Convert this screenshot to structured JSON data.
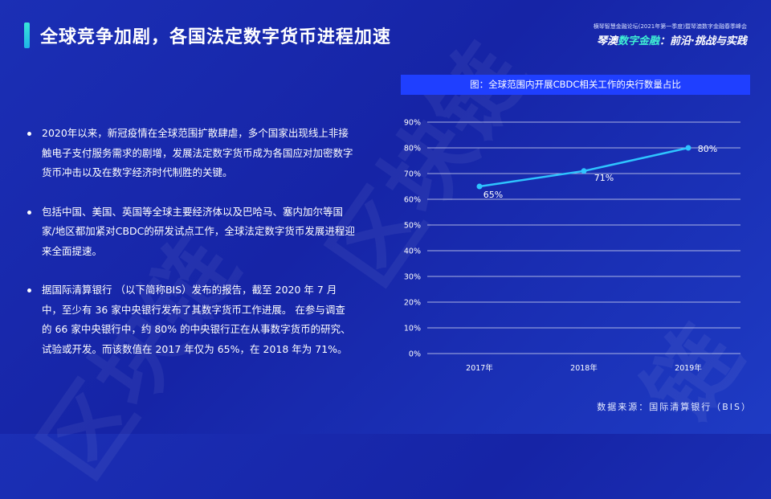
{
  "header": {
    "title": "全球竞争加剧，各国法定数字货币进程加速",
    "event_subtitle": "横琴智慧金融论坛(2021年第一季度)暨琴澳数字金融春季峰会",
    "event_title_prefix": "琴澳",
    "event_title_highlight": "数字金融",
    "event_title_suffix": "：前沿·挑战与实践"
  },
  "bullets": [
    "2020年以来，新冠疫情在全球范围扩散肆虐，多个国家出现线上非接触电子支付服务需求的剧增，发展法定数字货币成为各国应对加密数字货币冲击以及在数字经济时代制胜的关键。",
    "包括中国、美国、英国等全球主要经济体以及巴哈马、塞内加尔等国家/地区都加紧对CBDC的研发试点工作，全球法定数字货币发展进程迎来全面提速。",
    "据国际清算银行 （以下简称BIS）发布的报告，截至 2020 年 7 月中，至少有 36 家中央银行发布了其数字货币工作进展。 在参与调查的 66 家中央银行中，约 80% 的中央银行正在从事数字货币的研究、试验或开发。而该数值在 2017 年仅为 65%，在 2018 年为 71%。"
  ],
  "chart_data": {
    "type": "line",
    "title": "图：全球范围内开展CBDC相关工作的央行数量占比",
    "categories": [
      "2017年",
      "2018年",
      "2019年"
    ],
    "series": [
      {
        "values": [
          65,
          71,
          80
        ],
        "labels": [
          "65%",
          "71%",
          "80%"
        ]
      }
    ],
    "yticks": [
      "0%",
      "10%",
      "20%",
      "30%",
      "40%",
      "50%",
      "60%",
      "70%",
      "80%",
      "90%"
    ],
    "ylim": [
      0,
      90
    ],
    "grid": true,
    "line_color": "#2ec4ff"
  },
  "footer": {
    "source": "数据来源：国际清算银行（BIS）"
  }
}
